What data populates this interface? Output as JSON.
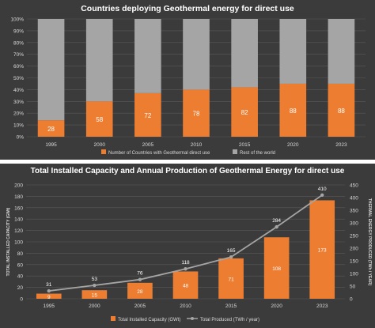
{
  "colors": {
    "panel_bg": "#3b3b3b",
    "orange": "#ed7d31",
    "gray_bar": "#a5a5a5",
    "line": "#a5a5a5",
    "grid": "#5a5a5a",
    "text": "#ffffff",
    "axis_text": "#d9d9d9"
  },
  "chart_data": [
    {
      "type": "bar",
      "stacked": true,
      "title": "Countries deploying Geothermal energy for direct use",
      "categories": [
        "1995",
        "2000",
        "2005",
        "2010",
        "2015",
        "2020",
        "2023"
      ],
      "series": [
        {
          "name": "Number of Countries with Geothermal direct use",
          "values": [
            14,
            30,
            37,
            40,
            42,
            45,
            45
          ],
          "labels": [
            "28",
            "58",
            "72",
            "78",
            "82",
            "88",
            "88"
          ],
          "color": "#ed7d31"
        },
        {
          "name": "Rest of the world",
          "values": [
            86,
            70,
            63,
            60,
            58,
            55,
            55
          ],
          "color": "#a5a5a5"
        }
      ],
      "ylim": [
        0,
        100
      ],
      "yticks": [
        "0%",
        "10%",
        "20%",
        "30%",
        "40%",
        "50%",
        "60%",
        "70%",
        "80%",
        "90%",
        "100%"
      ],
      "grid": true,
      "legend_position": "bottom"
    },
    {
      "type": "bar",
      "title": "Total Installed Capacity and Annual Production of Geothermal Energy for direct use",
      "categories": [
        "1995",
        "2000",
        "2005",
        "2010",
        "2015",
        "2020",
        "2023"
      ],
      "series": [
        {
          "name": "Total Installed Capacity (GWt)",
          "type": "bar",
          "axis": "left",
          "values": [
            9,
            15,
            28,
            48,
            71,
            108,
            173
          ],
          "color": "#ed7d31"
        },
        {
          "name": "Total Produced (TWh / year)",
          "type": "line",
          "axis": "right",
          "values": [
            31,
            53,
            76,
            118,
            165,
            284,
            410
          ],
          "color": "#a5a5a5"
        }
      ],
      "ylabel": "TOTAL INSTALLED CAPACITY (GWt)",
      "y2label": "THERMAL ENERGY PRODUCED (TWh / YEAR)",
      "ylim": [
        0,
        200
      ],
      "y2lim": [
        0,
        450
      ],
      "yticks": [
        "0",
        "20",
        "40",
        "60",
        "80",
        "100",
        "120",
        "140",
        "160",
        "180",
        "200"
      ],
      "y2ticks": [
        "0",
        "50",
        "100",
        "150",
        "200",
        "250",
        "300",
        "350",
        "400",
        "450"
      ],
      "grid": true,
      "legend_position": "bottom"
    }
  ]
}
